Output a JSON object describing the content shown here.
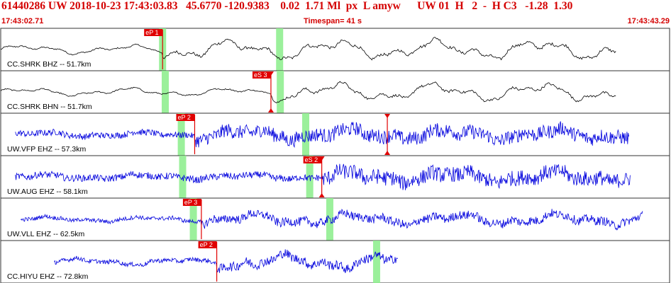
{
  "header": {
    "title": "61440286 UW 2018-10-23 17:43:03.83   45.6770 -120.9383    0.02  1.71 Ml  px  L amyw      UW 01  H   2  -  H C3   -1.28  1.30",
    "start_time": "17:43:02.71",
    "timespan": "Timespan=  41 s",
    "end_time": "17:43:43.29"
  },
  "colors": {
    "header_text": "#d40000",
    "frame": "#333333",
    "pick_marker": "#e00000",
    "pick_window": "#90ee90",
    "trace_black": "#000000",
    "trace_blue": "#0000dd"
  },
  "panels": [
    {
      "label": "CC.SHRK BHZ -- 51.7km",
      "trace_color": "black",
      "amplitude": 0.55,
      "noise": 0.12,
      "wave_start": 0.0,
      "wave_end": 0.92,
      "green_bands": [
        0.242,
        0.417
      ],
      "picks": [
        {
          "label": "eP 1",
          "pos": 0.242,
          "flags": false
        }
      ]
    },
    {
      "label": "CC.SHRK BHN -- 51.7km",
      "trace_color": "black",
      "amplitude": 0.5,
      "noise": 0.12,
      "wave_start": 0.0,
      "wave_end": 0.92,
      "green_bands": [
        0.246,
        0.418
      ],
      "picks": [
        {
          "label": "eS 3",
          "pos": 0.404,
          "flags": true
        }
      ]
    },
    {
      "label": "UW.VFP EHZ -- 57.3km",
      "trace_color": "blue",
      "amplitude": 0.6,
      "noise": 0.55,
      "wave_start": 0.022,
      "wave_end": 0.94,
      "green_bands": [
        0.27,
        0.456
      ],
      "picks": [
        {
          "label": "eP 2",
          "pos": 0.29,
          "flags": false
        },
        {
          "label": "",
          "pos": 0.578,
          "flags": true
        }
      ]
    },
    {
      "label": "UW.AUG EHZ -- 58.1km",
      "trace_color": "blue",
      "amplitude": 0.6,
      "noise": 0.6,
      "wave_start": 0.022,
      "wave_end": 0.942,
      "green_bands": [
        0.272,
        0.462
      ],
      "picks": [
        {
          "label": "eS 2",
          "pos": 0.48,
          "flags": true
        }
      ]
    },
    {
      "label": "UW.VLL EHZ -- 62.5km",
      "trace_color": "blue",
      "amplitude": 0.6,
      "noise": 0.35,
      "wave_start": 0.03,
      "wave_end": 0.96,
      "green_bands": [
        0.288,
        0.492
      ],
      "picks": [
        {
          "label": "eP 3",
          "pos": 0.3,
          "flags": false
        }
      ]
    },
    {
      "label": "CC.HIYU EHZ -- 72.8km",
      "trace_color": "blue",
      "amplitude": 0.75,
      "noise": 0.3,
      "wave_start": 0.08,
      "wave_end": 0.594,
      "green_bands": [
        0.562
      ],
      "picks": [
        {
          "label": "eP 2",
          "pos": 0.323,
          "flags": false
        }
      ]
    }
  ]
}
